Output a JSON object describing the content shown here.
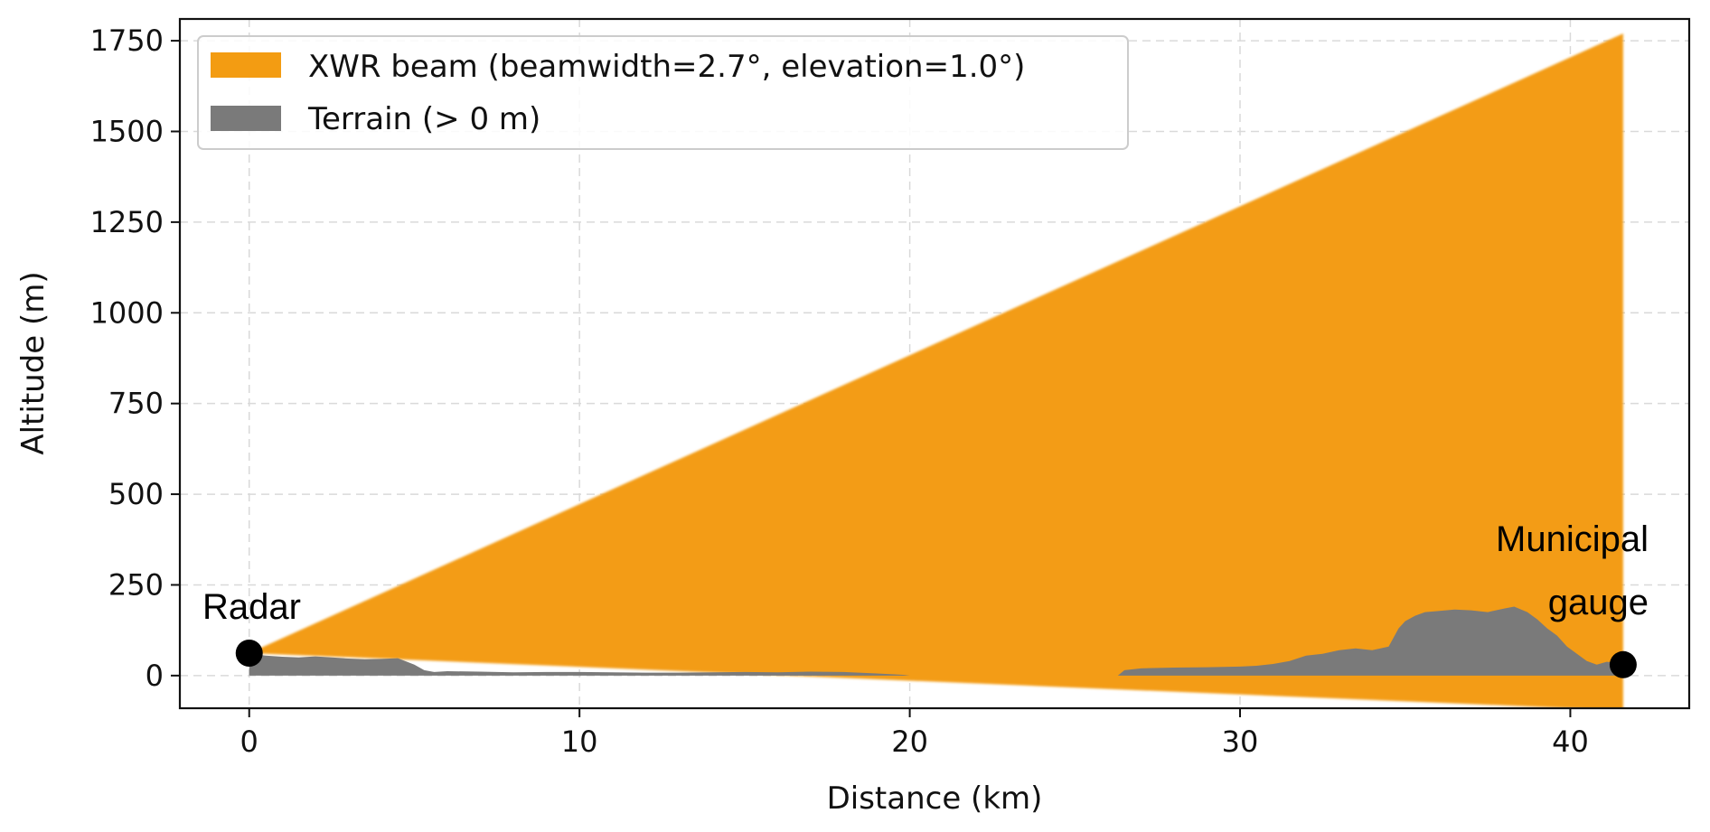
{
  "chart_data": {
    "type": "area",
    "xlabel": "Distance (km)",
    "ylabel": "Altitude (m)",
    "xlim": [
      -2.1,
      43.6
    ],
    "ylim": [
      -90,
      1810
    ],
    "xticks": [
      0,
      10,
      20,
      30,
      40
    ],
    "yticks": [
      0,
      250,
      500,
      750,
      1000,
      1250,
      1500,
      1750
    ],
    "grid": true,
    "legend_position": "upper-left",
    "series": [
      {
        "name": "XWR beam (beamwidth=2.7°, elevation=1.0°)",
        "color": "#f39c12",
        "x": [
          0,
          41.6
        ],
        "upper": [
          62,
          1770
        ],
        "lower": [
          62,
          -96
        ]
      },
      {
        "name": "Terrain (> 0 m)",
        "color": "#7a7a7a",
        "x": [
          0,
          0.5,
          1,
          1.5,
          2,
          2.5,
          3,
          3.5,
          4,
          4.5,
          5,
          5.3,
          5.6,
          6,
          7,
          8,
          9,
          10,
          11,
          12,
          13,
          14,
          15,
          16,
          17,
          18,
          19,
          19.8,
          20,
          26.3,
          26.5,
          27,
          28,
          29,
          30,
          30.5,
          31,
          31.5,
          32,
          32.5,
          33,
          33.5,
          34,
          34.5,
          34.8,
          35,
          35.3,
          35.6,
          36,
          36.5,
          37,
          37.5,
          38,
          38.3,
          38.7,
          39,
          39.3,
          39.6,
          39.9,
          40.2,
          40.5,
          40.8,
          41.1,
          41.4,
          41.6
        ],
        "y": [
          60,
          55,
          52,
          50,
          53,
          50,
          47,
          45,
          46,
          48,
          30,
          15,
          10,
          12,
          11,
          9,
          10,
          10,
          9,
          8,
          8,
          9,
          10,
          9,
          11,
          10,
          6,
          2,
          0,
          0,
          15,
          20,
          22,
          23,
          25,
          27,
          32,
          40,
          55,
          60,
          70,
          75,
          70,
          80,
          130,
          150,
          165,
          175,
          178,
          182,
          180,
          175,
          185,
          190,
          175,
          155,
          130,
          110,
          80,
          60,
          40,
          30,
          38,
          35,
          30
        ]
      }
    ],
    "points": [
      {
        "label": "Radar",
        "x": 0,
        "y": 62
      },
      {
        "label": "Municipal\ngauge",
        "x": 41.6,
        "y": 30
      }
    ]
  }
}
